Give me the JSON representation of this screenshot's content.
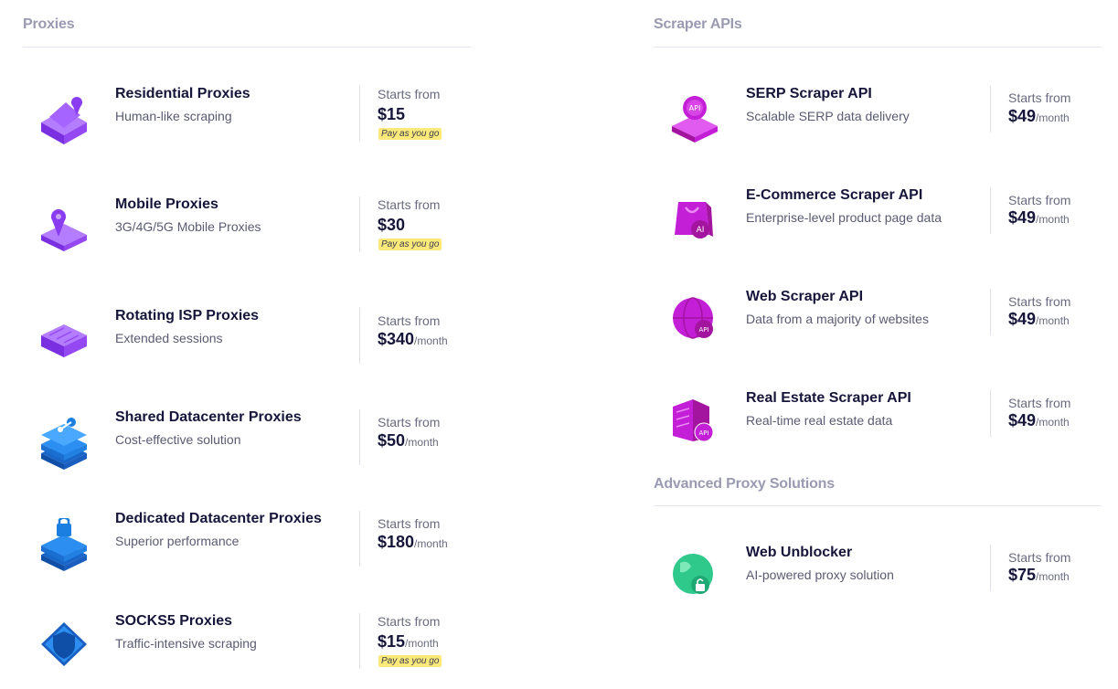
{
  "proxies": {
    "title": "Proxies",
    "items": [
      {
        "name": "Residential Proxies",
        "desc": "Human-like scraping",
        "starts": "Starts from",
        "price": "$15",
        "per": "",
        "badge": "Pay as you go",
        "icon": "residential-proxy-icon"
      },
      {
        "name": "Mobile Proxies",
        "desc": "3G/4G/5G Mobile Proxies",
        "starts": "Starts from",
        "price": "$30",
        "per": "",
        "badge": "Pay as you go",
        "icon": "mobile-proxy-icon"
      },
      {
        "name": "Rotating ISP Proxies",
        "desc": "Extended sessions",
        "starts": "Starts from",
        "price": "$340",
        "per": "/month",
        "badge": "",
        "icon": "isp-proxy-icon"
      },
      {
        "name": "Shared Datacenter Proxies",
        "desc": "Cost-effective solution",
        "starts": "Starts from",
        "price": "$50",
        "per": "/month",
        "badge": "",
        "icon": "shared-datacenter-icon"
      },
      {
        "name": "Dedicated Datacenter Proxies",
        "desc": "Superior performance",
        "starts": "Starts from",
        "price": "$180",
        "per": "/month",
        "badge": "",
        "icon": "dedicated-datacenter-icon"
      },
      {
        "name": "SOCKS5 Proxies",
        "desc": "Traffic-intensive scraping",
        "starts": "Starts from",
        "price": "$15",
        "per": "/month",
        "badge": "Pay as you go",
        "icon": "socks5-shield-icon"
      }
    ]
  },
  "scraper_apis": {
    "title": "Scraper APIs",
    "items": [
      {
        "name": "SERP Scraper API",
        "desc": "Scalable SERP data delivery",
        "starts": "Starts from",
        "price": "$49",
        "per": "/month",
        "icon": "serp-api-icon",
        "icon_text": "API"
      },
      {
        "name": "E-Commerce Scraper API",
        "desc": "Enterprise-level product page data",
        "starts": "Starts from",
        "price": "$49",
        "per": "/month",
        "icon": "ecommerce-api-icon",
        "icon_text": "AI"
      },
      {
        "name": "Web Scraper API",
        "desc": "Data from a majority of websites",
        "starts": "Starts from",
        "price": "$49",
        "per": "/month",
        "icon": "web-api-globe-icon",
        "icon_text": "API"
      },
      {
        "name": "Real Estate Scraper API",
        "desc": "Real-time real estate data",
        "starts": "Starts from",
        "price": "$49",
        "per": "/month",
        "icon": "real-estate-api-icon",
        "icon_text": "API"
      }
    ]
  },
  "advanced": {
    "title": "Advanced Proxy Solutions",
    "items": [
      {
        "name": "Web Unblocker",
        "desc": "AI-powered proxy solution",
        "starts": "Starts from",
        "price": "$75",
        "per": "/month",
        "icon": "web-unblocker-globe-icon"
      }
    ]
  },
  "colors": {
    "purple": "#8a3cf0",
    "magenta": "#c21fd6",
    "blue": "#1a7fe0",
    "green": "#2fc98c",
    "badge": "#fbe97a"
  }
}
